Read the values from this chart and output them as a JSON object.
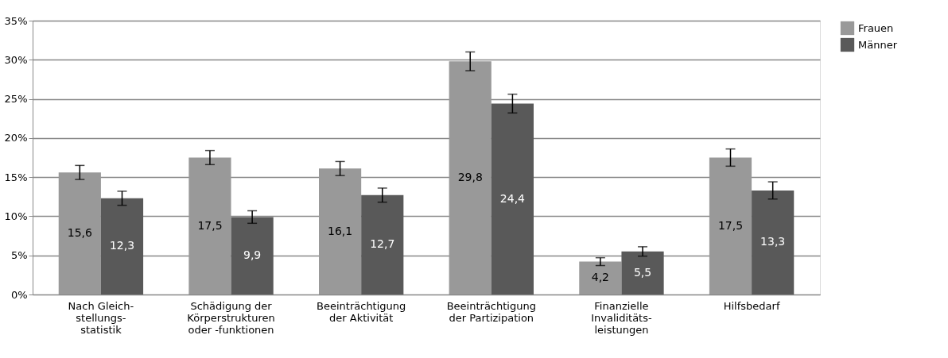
{
  "chart_data": {
    "type": "bar",
    "categories": [
      "Nach Gleich-\nstellungs-\nstatistik",
      "Schädigung der\nKörperstrukturen\noder -funktionen",
      "Beeinträchtigung\nder Aktivität",
      "Beeinträchtigung\nder Partizipation",
      "Finanzielle\nInvaliditäts-\nleistungen",
      "Hilfsbedarf"
    ],
    "series": [
      {
        "name": "Frauen",
        "color": "#999999",
        "values": [
          15.6,
          17.5,
          16.1,
          29.8,
          4.2,
          17.5
        ],
        "errors": [
          0.9,
          0.9,
          0.9,
          1.2,
          0.5,
          1.1
        ],
        "value_labels": [
          "15,6",
          "17,5",
          "16,1",
          "29,8",
          "4,2",
          "17,5"
        ]
      },
      {
        "name": "Männer",
        "color": "#595959",
        "values": [
          12.3,
          9.9,
          12.7,
          24.4,
          5.5,
          13.3
        ],
        "errors": [
          0.9,
          0.8,
          0.9,
          1.2,
          0.6,
          1.1
        ],
        "value_labels": [
          "12,3",
          "9,9",
          "12,7",
          "24,4",
          "5,5",
          "13,3"
        ]
      }
    ],
    "ylim": [
      0,
      35
    ],
    "yticks": [
      {
        "value": 0,
        "label": "0%"
      },
      {
        "value": 5,
        "label": "5%"
      },
      {
        "value": 10,
        "label": "10%"
      },
      {
        "value": 15,
        "label": "15%"
      },
      {
        "value": 20,
        "label": "20%"
      },
      {
        "value": 25,
        "label": "25%"
      },
      {
        "value": 30,
        "label": "30%"
      },
      {
        "value": 35,
        "label": "35%"
      }
    ],
    "grid": "y",
    "legend": "top right"
  }
}
